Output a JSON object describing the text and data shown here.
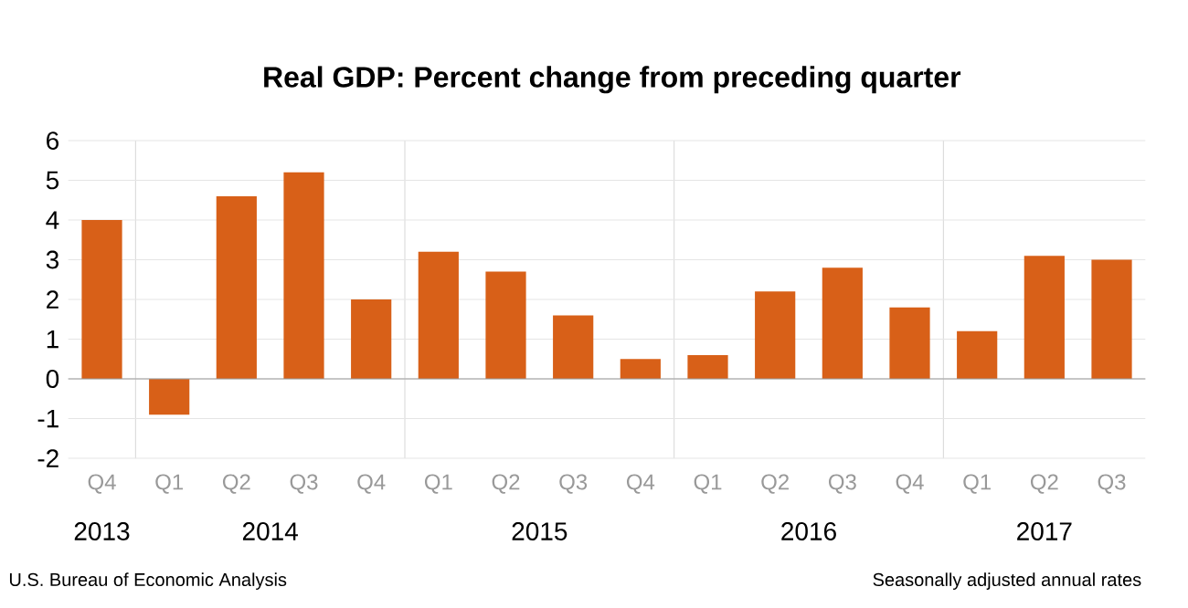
{
  "chart_data": {
    "type": "bar",
    "title": "Real GDP:  Percent change from preceding quarter",
    "categories": [
      "Q4",
      "Q1",
      "Q2",
      "Q3",
      "Q4",
      "Q1",
      "Q2",
      "Q3",
      "Q4",
      "Q1",
      "Q2",
      "Q3",
      "Q4",
      "Q1",
      "Q2",
      "Q3"
    ],
    "values": [
      4.0,
      -0.9,
      4.6,
      5.2,
      2.0,
      3.2,
      2.7,
      1.6,
      0.5,
      0.6,
      2.2,
      2.8,
      1.8,
      1.2,
      3.1,
      3.0
    ],
    "color": "#d86018",
    "ylim": [
      -2,
      6
    ],
    "yticks": [
      -2,
      -1,
      0,
      1,
      2,
      3,
      4,
      5,
      6
    ],
    "grid": true,
    "annotations": [
      "2013",
      "2014",
      "2015",
      "2016",
      "2017",
      "U.S. Bureau of Economic Analysis",
      "Seasonally adjusted annual  rates"
    ]
  }
}
